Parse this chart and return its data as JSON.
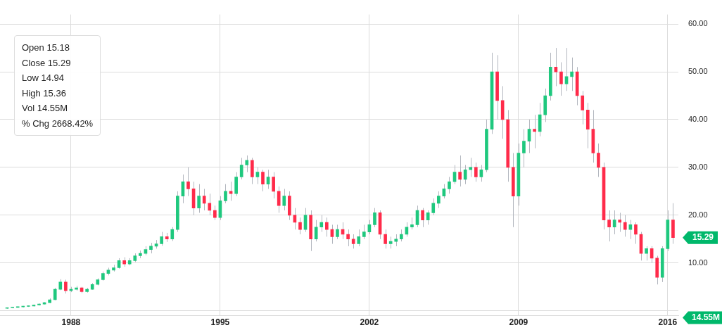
{
  "chart_data": {
    "type": "candlestick",
    "x": [
      "1985-01",
      "1985-04",
      "1985-07",
      "1985-10",
      "1986-01",
      "1986-04",
      "1986-07",
      "1986-10",
      "1987-01",
      "1987-04",
      "1987-07",
      "1987-10",
      "1988-01",
      "1988-04",
      "1988-07",
      "1988-10",
      "1989-01",
      "1989-04",
      "1989-07",
      "1989-10",
      "1990-01",
      "1990-04",
      "1990-07",
      "1990-10",
      "1991-01",
      "1991-04",
      "1991-07",
      "1991-10",
      "1992-01",
      "1992-04",
      "1992-07",
      "1992-10",
      "1993-01",
      "1993-04",
      "1993-07",
      "1993-10",
      "1994-01",
      "1994-04",
      "1994-07",
      "1994-10",
      "1995-01",
      "1995-04",
      "1995-07",
      "1995-10",
      "1996-01",
      "1996-04",
      "1996-07",
      "1996-10",
      "1997-01",
      "1997-04",
      "1997-07",
      "1997-10",
      "1998-01",
      "1998-04",
      "1998-07",
      "1998-10",
      "1999-01",
      "1999-04",
      "1999-07",
      "1999-10",
      "2000-01",
      "2000-04",
      "2000-07",
      "2000-10",
      "2001-01",
      "2001-04",
      "2001-07",
      "2001-10",
      "2002-01",
      "2002-04",
      "2002-07",
      "2002-10",
      "2003-01",
      "2003-04",
      "2003-07",
      "2003-10",
      "2004-01",
      "2004-04",
      "2004-07",
      "2004-10",
      "2005-01",
      "2005-04",
      "2005-07",
      "2005-10",
      "2006-01",
      "2006-04",
      "2006-07",
      "2006-10",
      "2007-01",
      "2007-04",
      "2007-07",
      "2007-10",
      "2008-01",
      "2008-04",
      "2008-07",
      "2008-10",
      "2009-01",
      "2009-04",
      "2009-07",
      "2009-10",
      "2010-01",
      "2010-04",
      "2010-07",
      "2010-10",
      "2011-01",
      "2011-04",
      "2011-07",
      "2011-10",
      "2012-01",
      "2012-04",
      "2012-07",
      "2012-10",
      "2013-01",
      "2013-04",
      "2013-07",
      "2013-10",
      "2014-01",
      "2014-04",
      "2014-07",
      "2014-10",
      "2015-01",
      "2015-04",
      "2015-07",
      "2015-10",
      "2016-01",
      "2016-04"
    ],
    "ohlc": [
      [
        0.5,
        0.7,
        0.4,
        0.6
      ],
      [
        0.6,
        0.8,
        0.5,
        0.7
      ],
      [
        0.7,
        0.9,
        0.6,
        0.8
      ],
      [
        0.8,
        1.0,
        0.7,
        0.9
      ],
      [
        0.9,
        1.1,
        0.8,
        1.0
      ],
      [
        1.0,
        1.3,
        0.9,
        1.2
      ],
      [
        1.2,
        1.5,
        1.1,
        1.4
      ],
      [
        1.4,
        1.8,
        1.3,
        1.7
      ],
      [
        1.7,
        2.6,
        1.6,
        2.3
      ],
      [
        2.3,
        4.8,
        2.2,
        4.5
      ],
      [
        4.5,
        6.6,
        4.3,
        6.0
      ],
      [
        6.0,
        6.5,
        3.6,
        4.2
      ],
      [
        4.2,
        5.0,
        3.9,
        4.5
      ],
      [
        4.5,
        5.2,
        4.2,
        4.8
      ],
      [
        4.8,
        5.0,
        3.7,
        4.0
      ],
      [
        4.0,
        4.8,
        3.8,
        4.5
      ],
      [
        4.5,
        5.8,
        4.4,
        5.5
      ],
      [
        5.5,
        6.8,
        5.3,
        6.5
      ],
      [
        6.5,
        8.2,
        6.3,
        7.8
      ],
      [
        7.8,
        9.0,
        7.4,
        8.5
      ],
      [
        8.5,
        9.6,
        8.2,
        9.0
      ],
      [
        9.0,
        11.0,
        8.8,
        10.5
      ],
      [
        10.5,
        11.2,
        9.2,
        9.8
      ],
      [
        9.8,
        11.0,
        9.5,
        10.5
      ],
      [
        10.5,
        12.0,
        10.2,
        11.5
      ],
      [
        11.5,
        12.6,
        11.0,
        12.0
      ],
      [
        12.0,
        13.5,
        11.6,
        12.8
      ],
      [
        12.8,
        14.2,
        12.0,
        13.5
      ],
      [
        13.5,
        14.8,
        13.0,
        14.0
      ],
      [
        14.0,
        16.5,
        13.6,
        15.5
      ],
      [
        15.5,
        16.3,
        14.4,
        15.0
      ],
      [
        15.0,
        17.5,
        14.6,
        17.0
      ],
      [
        17.0,
        25.0,
        16.5,
        24.0
      ],
      [
        24.0,
        28.5,
        22.5,
        27.0
      ],
      [
        27.0,
        30.0,
        24.0,
        25.5
      ],
      [
        25.5,
        27.0,
        20.0,
        21.5
      ],
      [
        21.5,
        26.5,
        20.5,
        24.0
      ],
      [
        24.0,
        25.5,
        21.0,
        22.5
      ],
      [
        22.5,
        24.5,
        20.0,
        21.0
      ],
      [
        21.0,
        22.0,
        19.0,
        19.5
      ],
      [
        19.5,
        24.0,
        19.0,
        23.0
      ],
      [
        23.0,
        26.5,
        22.5,
        25.0
      ],
      [
        25.0,
        27.0,
        23.0,
        24.5
      ],
      [
        24.5,
        29.0,
        24.0,
        28.0
      ],
      [
        28.0,
        32.0,
        27.5,
        30.5
      ],
      [
        30.5,
        32.5,
        29.0,
        31.5
      ],
      [
        31.5,
        32.0,
        26.5,
        28.0
      ],
      [
        28.0,
        30.0,
        26.5,
        29.0
      ],
      [
        29.0,
        29.5,
        25.0,
        26.5
      ],
      [
        26.5,
        29.5,
        25.5,
        28.0
      ],
      [
        28.0,
        29.0,
        23.5,
        25.0
      ],
      [
        25.0,
        26.0,
        20.5,
        22.0
      ],
      [
        22.0,
        25.5,
        21.0,
        24.0
      ],
      [
        24.0,
        25.0,
        19.0,
        20.0
      ],
      [
        20.0,
        21.5,
        17.0,
        18.5
      ],
      [
        18.5,
        19.5,
        16.0,
        17.0
      ],
      [
        17.0,
        21.5,
        16.5,
        20.0
      ],
      [
        20.0,
        21.0,
        12.5,
        15.0
      ],
      [
        15.0,
        19.0,
        14.5,
        17.5
      ],
      [
        17.5,
        20.0,
        16.5,
        18.5
      ],
      [
        18.5,
        19.5,
        15.5,
        17.0
      ],
      [
        17.0,
        18.0,
        14.0,
        15.5
      ],
      [
        15.5,
        18.0,
        15.0,
        17.0
      ],
      [
        17.0,
        18.5,
        15.0,
        16.0
      ],
      [
        16.0,
        17.0,
        13.5,
        15.0
      ],
      [
        15.0,
        16.0,
        13.0,
        14.0
      ],
      [
        14.0,
        17.0,
        13.5,
        15.5
      ],
      [
        15.5,
        18.0,
        15.0,
        16.5
      ],
      [
        16.5,
        19.0,
        16.0,
        18.0
      ],
      [
        18.0,
        21.5,
        17.5,
        20.5
      ],
      [
        20.5,
        21.0,
        15.0,
        16.0
      ],
      [
        16.0,
        17.0,
        13.0,
        14.0
      ],
      [
        14.0,
        15.5,
        13.0,
        14.5
      ],
      [
        14.5,
        16.0,
        13.5,
        15.0
      ],
      [
        15.0,
        17.0,
        14.5,
        16.0
      ],
      [
        16.0,
        18.5,
        15.5,
        17.5
      ],
      [
        17.5,
        19.5,
        17.0,
        18.0
      ],
      [
        18.0,
        22.0,
        17.5,
        21.0
      ],
      [
        21.0,
        21.5,
        17.5,
        19.0
      ],
      [
        19.0,
        21.0,
        18.0,
        20.5
      ],
      [
        20.5,
        23.5,
        20.0,
        22.5
      ],
      [
        22.5,
        25.0,
        21.5,
        24.0
      ],
      [
        24.0,
        26.5,
        23.5,
        25.5
      ],
      [
        25.5,
        28.0,
        24.5,
        27.0
      ],
      [
        27.0,
        30.5,
        26.5,
        29.0
      ],
      [
        29.0,
        32.5,
        26.0,
        27.5
      ],
      [
        27.5,
        30.5,
        26.5,
        29.5
      ],
      [
        29.5,
        32.0,
        28.0,
        30.0
      ],
      [
        30.0,
        31.0,
        27.0,
        28.0
      ],
      [
        28.0,
        30.5,
        27.0,
        29.5
      ],
      [
        29.5,
        40.0,
        29.0,
        38.0
      ],
      [
        38.0,
        54.0,
        37.0,
        50.0
      ],
      [
        50.0,
        53.5,
        40.0,
        44.0
      ],
      [
        44.0,
        47.0,
        36.0,
        40.0
      ],
      [
        40.0,
        42.0,
        27.0,
        30.0
      ],
      [
        30.0,
        33.0,
        17.5,
        24.0
      ],
      [
        24.0,
        35.0,
        22.0,
        33.0
      ],
      [
        33.0,
        38.0,
        30.0,
        35.5
      ],
      [
        35.5,
        40.0,
        33.0,
        38.0
      ],
      [
        38.0,
        41.0,
        34.0,
        37.5
      ],
      [
        37.5,
        43.5,
        36.5,
        41.0
      ],
      [
        41.0,
        46.5,
        39.5,
        45.0
      ],
      [
        45.0,
        54.0,
        44.0,
        51.0
      ],
      [
        51.0,
        55.0,
        47.0,
        50.0
      ],
      [
        50.0,
        52.0,
        45.0,
        47.5
      ],
      [
        47.5,
        55.0,
        46.0,
        49.0
      ],
      [
        49.0,
        53.0,
        46.0,
        50.0
      ],
      [
        50.0,
        51.0,
        43.0,
        45.0
      ],
      [
        45.0,
        46.0,
        39.0,
        42.0
      ],
      [
        42.0,
        43.5,
        34.0,
        38.0
      ],
      [
        38.0,
        42.0,
        31.0,
        33.0
      ],
      [
        33.0,
        35.0,
        28.0,
        30.0
      ],
      [
        30.0,
        31.0,
        17.0,
        19.0
      ],
      [
        19.0,
        21.0,
        14.5,
        17.5
      ],
      [
        17.5,
        21.0,
        16.0,
        19.0
      ],
      [
        19.0,
        20.5,
        16.5,
        18.5
      ],
      [
        18.5,
        20.0,
        15.5,
        17.0
      ],
      [
        17.0,
        19.0,
        15.0,
        18.0
      ],
      [
        18.0,
        18.5,
        14.0,
        16.0
      ],
      [
        16.0,
        16.5,
        10.5,
        12.0
      ],
      [
        12.0,
        13.5,
        10.5,
        13.0
      ],
      [
        13.0,
        13.5,
        10.0,
        11.0
      ],
      [
        11.0,
        11.5,
        5.5,
        7.0
      ],
      [
        7.0,
        13.5,
        6.0,
        13.0
      ],
      [
        13.0,
        21.0,
        12.5,
        19.0
      ],
      [
        19.0,
        22.5,
        14.0,
        15.29
      ]
    ],
    "xlim": [
      "1984-09",
      "2016-07"
    ],
    "xticks": [
      "1988",
      "1995",
      "2002",
      "2009",
      "2016"
    ],
    "ylim": [
      -1,
      62
    ],
    "yticks": [
      {
        "value": 0,
        "label": null
      },
      {
        "value": 10,
        "label": "10.00"
      },
      {
        "value": 20,
        "label": "20.00"
      },
      {
        "value": 30,
        "label": "30.00"
      },
      {
        "value": 40,
        "label": "40.00"
      },
      {
        "value": 50,
        "label": "50.00"
      },
      {
        "value": 60,
        "label": "60.00"
      }
    ],
    "grid": true,
    "annotations": [
      "Open 15.18",
      "Close 15.29",
      "Low 14.94",
      "High 15.36",
      "Vol 14.55M",
      "% Chg 2668.42%",
      "15.29",
      "14.55M"
    ]
  }
}
